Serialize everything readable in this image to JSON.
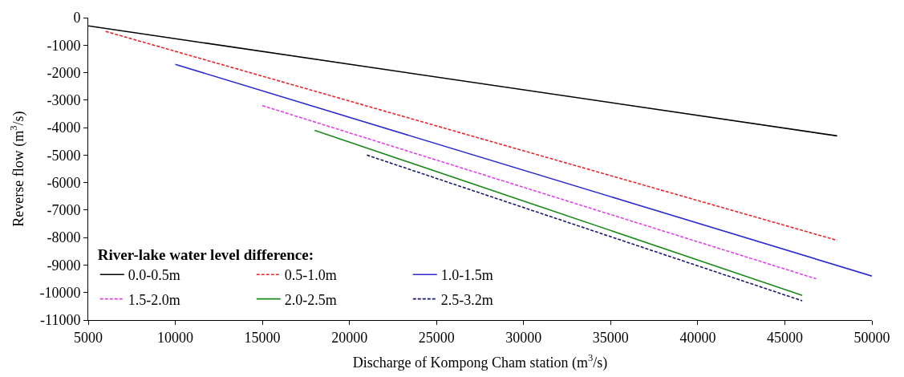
{
  "chart_data": {
    "type": "line",
    "xlabel": "Discharge of Kompong Cham station (m$^{3}$/s)",
    "ylabel": "Reverse flow (m$^{3}$/s)",
    "legend_title": "River-lake water level difference:",
    "xlim": [
      5000,
      50000
    ],
    "xticks": [
      5000,
      10000,
      15000,
      20000,
      25000,
      30000,
      35000,
      40000,
      45000,
      50000
    ],
    "ylim": [
      -11000,
      0
    ],
    "yticks": [
      0,
      -1000,
      -2000,
      -3000,
      -4000,
      -5000,
      -6000,
      -7000,
      -8000,
      -9000,
      -10000,
      -11000
    ],
    "legend": "bottom left",
    "marker": "none",
    "series": [
      {
        "name": "0.0-0.5m",
        "color": "#000000",
        "line_style": "solid",
        "x": [
          5000,
          48000
        ],
        "values": [
          -300,
          -4300
        ]
      },
      {
        "name": "0.5-1.0m",
        "color": "#e8262b",
        "line_style": "dashed",
        "x": [
          6000,
          48000
        ],
        "values": [
          -500,
          -8100
        ]
      },
      {
        "name": "1.0-1.5m",
        "color": "#2a2ad0",
        "line_style": "solid",
        "x": [
          10000,
          50000
        ],
        "values": [
          -1700,
          -9400
        ]
      },
      {
        "name": "1.5-2.0m",
        "color": "#e040e8",
        "line_style": "dashed",
        "x": [
          15000,
          46800
        ],
        "values": [
          -3200,
          -9500
        ]
      },
      {
        "name": "2.0-2.5m",
        "color": "#1a8a1a",
        "line_style": "solid",
        "x": [
          18000,
          46000
        ],
        "values": [
          -4100,
          -10100
        ]
      },
      {
        "name": "2.5-3.2m",
        "color": "#1a1a6e",
        "line_style": "dashed",
        "x": [
          21000,
          46000
        ],
        "values": [
          -5000,
          -10300
        ]
      }
    ]
  }
}
